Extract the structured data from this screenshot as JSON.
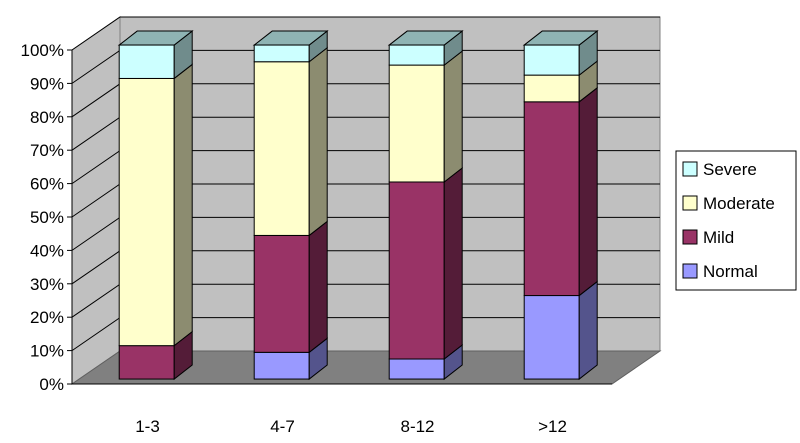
{
  "chart_data": {
    "type": "bar",
    "stacked": true,
    "percent_stacked": true,
    "three_d": true,
    "categories": [
      "1-3",
      "4-7",
      "8-12",
      ">12"
    ],
    "series": [
      {
        "name": "Normal",
        "color": "#9999ff",
        "values": [
          0,
          8,
          6,
          25
        ]
      },
      {
        "name": "Mild",
        "color": "#993366",
        "values": [
          10,
          35,
          53,
          58
        ]
      },
      {
        "name": "Moderate",
        "color": "#ffffcc",
        "values": [
          80,
          52,
          35,
          8
        ]
      },
      {
        "name": "Severe",
        "color": "#ccffff",
        "values": [
          10,
          5,
          6,
          9
        ]
      }
    ],
    "y_ticks": [
      "0%",
      "10%",
      "20%",
      "30%",
      "40%",
      "50%",
      "60%",
      "70%",
      "80%",
      "90%",
      "100%"
    ],
    "ylim": [
      0,
      100
    ],
    "legend": {
      "position": "right",
      "order": [
        "Severe",
        "Moderate",
        "Mild",
        "Normal"
      ]
    },
    "grid": true,
    "wall_color": "#c0c0c0",
    "floor_color": "#808080"
  }
}
